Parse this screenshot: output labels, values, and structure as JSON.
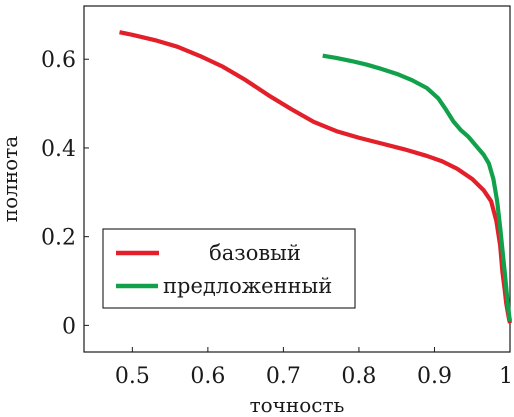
{
  "chart_data": {
    "type": "line",
    "title": "",
    "xlabel": "точность",
    "ylabel": "полнота",
    "xlim": [
      0.436,
      1.0
    ],
    "ylim": [
      -0.06,
      0.72
    ],
    "xticks": [
      0.5,
      0.6,
      0.7,
      0.8,
      0.9,
      1.0
    ],
    "xtick_labels": [
      "0.5",
      "0.6",
      "0.7",
      "0.8",
      "0.9",
      "1"
    ],
    "yticks": [
      0,
      0.2,
      0.4,
      0.6
    ],
    "ytick_labels": [
      "0",
      "0.2",
      "0.4",
      "0.6"
    ],
    "grid": false,
    "legend": "lower-left",
    "series": [
      {
        "name": "базовый",
        "color": "#e3202a",
        "x": [
          0.483,
          0.5,
          0.53,
          0.56,
          0.59,
          0.62,
          0.65,
          0.68,
          0.71,
          0.74,
          0.77,
          0.8,
          0.83,
          0.86,
          0.89,
          0.91,
          0.93,
          0.95,
          0.965,
          0.975,
          0.982,
          0.987,
          0.99,
          0.993,
          0.995,
          0.997,
          0.999,
          1.0
        ],
        "y": [
          0.661,
          0.655,
          0.643,
          0.628,
          0.607,
          0.583,
          0.553,
          0.519,
          0.488,
          0.459,
          0.438,
          0.423,
          0.41,
          0.397,
          0.382,
          0.37,
          0.353,
          0.33,
          0.305,
          0.28,
          0.235,
          0.18,
          0.12,
          0.08,
          0.05,
          0.03,
          0.012,
          0.005
        ]
      },
      {
        "name": "предложенный",
        "color": "#12a14b",
        "x": [
          0.752,
          0.77,
          0.79,
          0.81,
          0.83,
          0.85,
          0.87,
          0.89,
          0.905,
          0.915,
          0.925,
          0.935,
          0.945,
          0.955,
          0.965,
          0.972,
          0.978,
          0.983,
          0.987,
          0.99,
          0.993,
          0.995,
          0.997,
          0.999,
          1.0
        ],
        "y": [
          0.608,
          0.603,
          0.596,
          0.588,
          0.578,
          0.567,
          0.553,
          0.535,
          0.512,
          0.487,
          0.46,
          0.44,
          0.425,
          0.405,
          0.385,
          0.365,
          0.33,
          0.28,
          0.22,
          0.17,
          0.12,
          0.085,
          0.05,
          0.02,
          0.01
        ]
      }
    ]
  }
}
